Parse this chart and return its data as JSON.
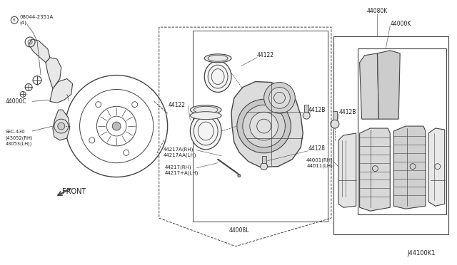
{
  "bg_color": "#ffffff",
  "line_color": "#444444",
  "diagram_id": "J44100K1",
  "labels": {
    "bolt": "08044-2351A\n(4)",
    "bolt_symbol": "B",
    "part_4400C": "44000C",
    "part_sec430": "SEC.430\n(43052(RH)\n43053(LH))",
    "part_44217_rh": "44217(RH)\n44217+A(LH)",
    "part_44217A": "44217A(RH)\n44217AA(LH)",
    "part_4412B_top": "44128",
    "part_4412B_bot": "4412B",
    "part_44122_left": "44122",
    "part_44122_right": "44122",
    "part_4400L": "44008L",
    "part_44080K": "44080K",
    "part_44000K": "44000K",
    "part_44001": "44001(RH)\n44011(LH)",
    "front_arrow": "FRONT"
  }
}
